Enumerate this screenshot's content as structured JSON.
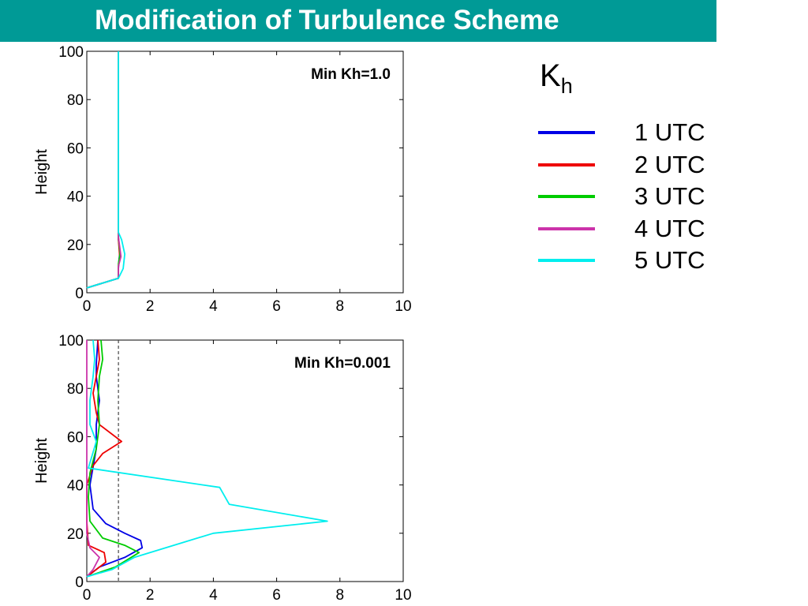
{
  "header": {
    "title": "Modification of Turbulence Scheme"
  },
  "legend": {
    "title_main": "K",
    "title_sub": "h",
    "items": [
      {
        "label": "1  UTC",
        "color": "#0000e6"
      },
      {
        "label": "2  UTC",
        "color": "#ee0000"
      },
      {
        "label": "3  UTC",
        "color": "#00cc00"
      },
      {
        "label": "4  UTC",
        "color": "#cc33aa"
      },
      {
        "label": "5  UTC",
        "color": "#00eeee"
      }
    ]
  },
  "chart_data": [
    {
      "type": "line",
      "annotation": "Min Kh=1.0",
      "xlabel": "",
      "ylabel": "Height",
      "xlim": [
        0,
        10
      ],
      "ylim": [
        0,
        100
      ],
      "xticks": [
        0,
        2,
        4,
        6,
        8,
        10
      ],
      "yticks": [
        0,
        20,
        40,
        60,
        80,
        100
      ],
      "series": [
        {
          "color": "#0000e6",
          "points": [
            [
              0,
              2
            ],
            [
              1,
              6
            ],
            [
              1,
              10
            ],
            [
              1.02,
              14
            ],
            [
              1.05,
              17
            ],
            [
              1,
              22
            ],
            [
              1,
              100
            ]
          ]
        },
        {
          "color": "#ee0000",
          "points": [
            [
              0,
              2
            ],
            [
              1,
              6
            ],
            [
              1,
              11
            ],
            [
              1.04,
              15
            ],
            [
              1,
              22
            ],
            [
              1,
              100
            ]
          ]
        },
        {
          "color": "#00cc00",
          "points": [
            [
              0,
              2
            ],
            [
              1,
              6
            ],
            [
              1,
              12
            ],
            [
              1.05,
              16
            ],
            [
              1,
              23
            ],
            [
              1,
              100
            ]
          ]
        },
        {
          "color": "#cc33aa",
          "points": [
            [
              0,
              2
            ],
            [
              1,
              6
            ],
            [
              1,
              11
            ],
            [
              1.08,
              15
            ],
            [
              1,
              23
            ],
            [
              1,
              100
            ]
          ]
        },
        {
          "color": "#00eeee",
          "points": [
            [
              0,
              2
            ],
            [
              1,
              6
            ],
            [
              1.15,
              10
            ],
            [
              1.2,
              16
            ],
            [
              1.1,
              22
            ],
            [
              1,
              25
            ],
            [
              1,
              100
            ]
          ]
        }
      ]
    },
    {
      "type": "line",
      "annotation": "Min Kh=0.001",
      "xlabel": "",
      "ylabel": "Height",
      "xlim": [
        0,
        10
      ],
      "ylim": [
        0,
        100
      ],
      "xticks": [
        0,
        2,
        4,
        6,
        8,
        10
      ],
      "yticks": [
        0,
        20,
        40,
        60,
        80,
        100
      ],
      "reference_line_x": 1,
      "series": [
        {
          "color": "#0000e6",
          "points": [
            [
              0,
              2
            ],
            [
              0.4,
              6
            ],
            [
              1.2,
              10
            ],
            [
              1.75,
              14
            ],
            [
              1.7,
              17
            ],
            [
              1.2,
              20
            ],
            [
              0.6,
              24
            ],
            [
              0.2,
              30
            ],
            [
              0.1,
              40
            ],
            [
              0.3,
              55
            ],
            [
              0.3,
              65
            ],
            [
              0.4,
              75
            ],
            [
              0.3,
              85
            ],
            [
              0.3,
              90
            ],
            [
              0.35,
              100
            ]
          ]
        },
        {
          "color": "#ee0000",
          "points": [
            [
              0,
              2
            ],
            [
              0.6,
              8
            ],
            [
              0.55,
              12
            ],
            [
              0.05,
              15
            ],
            [
              0,
              25
            ],
            [
              0,
              40
            ],
            [
              0.2,
              48
            ],
            [
              0.5,
              53
            ],
            [
              1.1,
              58
            ],
            [
              0.4,
              65
            ],
            [
              0.3,
              70
            ],
            [
              0.2,
              78
            ],
            [
              0.3,
              85
            ],
            [
              0.4,
              92
            ],
            [
              0.35,
              100
            ]
          ]
        },
        {
          "color": "#00cc00",
          "points": [
            [
              0,
              2
            ],
            [
              0.9,
              6
            ],
            [
              1.65,
              12
            ],
            [
              1.2,
              15
            ],
            [
              0.5,
              18
            ],
            [
              0.1,
              25
            ],
            [
              0.05,
              35
            ],
            [
              0.1,
              45
            ],
            [
              0.3,
              55
            ],
            [
              0.4,
              65
            ],
            [
              0.35,
              75
            ],
            [
              0.4,
              85
            ],
            [
              0.5,
              92
            ],
            [
              0.45,
              100
            ]
          ]
        },
        {
          "color": "#cc33aa",
          "points": [
            [
              0,
              2
            ],
            [
              0.2,
              5
            ],
            [
              0.4,
              10
            ],
            [
              0.1,
              14
            ],
            [
              0,
              20
            ],
            [
              0,
              30
            ],
            [
              0,
              40
            ],
            [
              0,
              60
            ],
            [
              0,
              80
            ],
            [
              0,
              100
            ]
          ]
        },
        {
          "color": "#00eeee",
          "points": [
            [
              0,
              2
            ],
            [
              0.8,
              5
            ],
            [
              1.5,
              10
            ],
            [
              3,
              16
            ],
            [
              4,
              20
            ],
            [
              7.6,
              25
            ],
            [
              4.5,
              32
            ],
            [
              4.2,
              39
            ],
            [
              0.05,
              47
            ],
            [
              0.3,
              58
            ],
            [
              0.1,
              65
            ],
            [
              0.1,
              75
            ],
            [
              0.2,
              85
            ],
            [
              0.25,
              92
            ],
            [
              0.2,
              100
            ]
          ]
        }
      ]
    }
  ]
}
